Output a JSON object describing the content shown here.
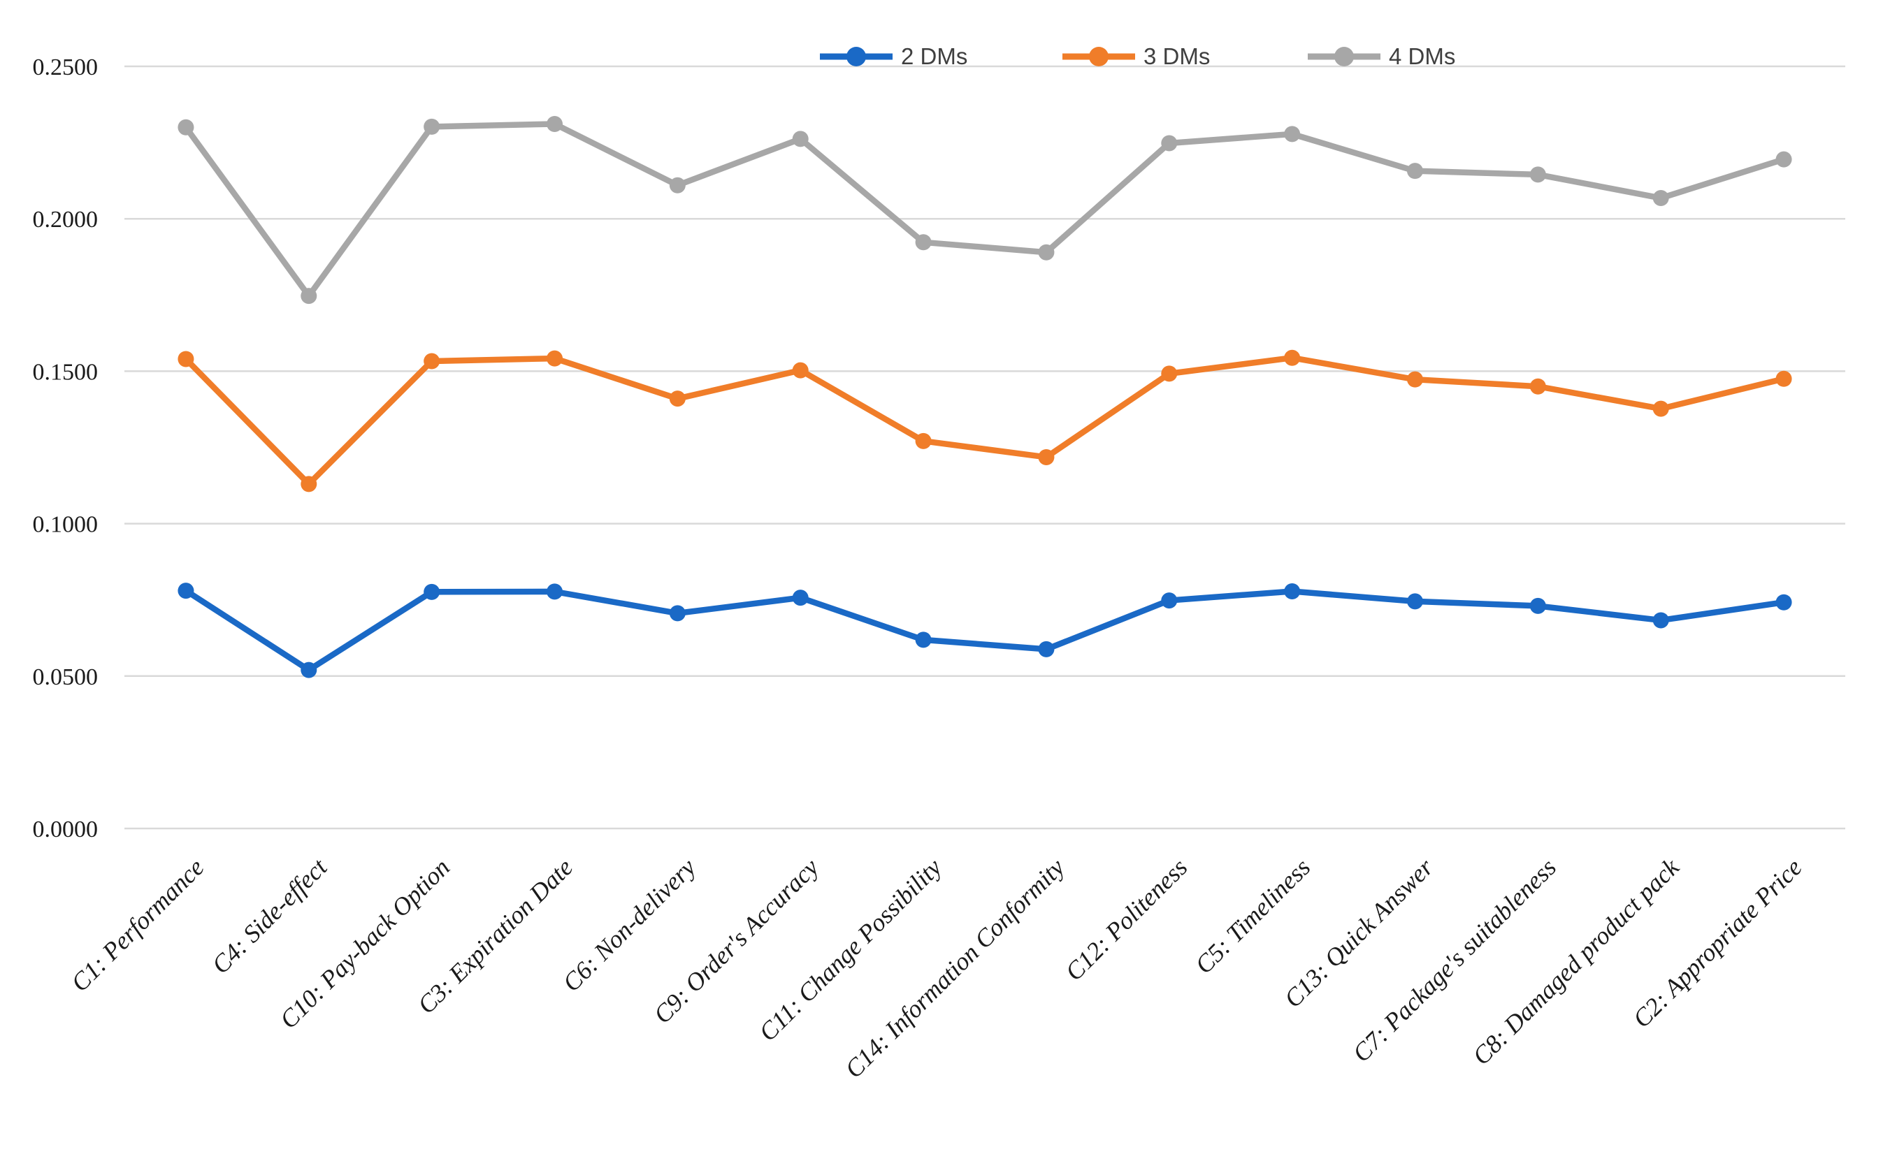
{
  "figure": {
    "background_color": "#ffffff",
    "gridline_color": "#d9d9d9",
    "axis_text_color": "#1a1a1a",
    "legend_text_color": "#3f3f3f"
  },
  "legend": {
    "items": [
      {
        "label": "2 DMs",
        "color": "#1a69c6"
      },
      {
        "label": "3 DMs",
        "color": "#f07d29"
      },
      {
        "label": "4 DMs",
        "color": "#a7a7a7"
      }
    ]
  },
  "chart_data": {
    "type": "line",
    "title": "",
    "xlabel": "",
    "ylabel": "",
    "categories": [
      "C1: Performance",
      "C4: Side-effect",
      "C10: Pay-back Option",
      "C3: Expiration Date",
      "C6: Non-delivery",
      "C9: Order's Accuracy",
      "C11: Change Possibility",
      "C14: Information Conformity",
      "C12: Politeness",
      "C5: Timeliness",
      "C13: Quick Answer",
      "C7: Package's suitableness",
      "C8: Damaged product pack",
      "C2: Appropriate Price"
    ],
    "series": [
      {
        "name": "2 DMs",
        "color": "#1a69c6",
        "values": [
          0.078,
          0.052,
          0.0776,
          0.0777,
          0.0706,
          0.0757,
          0.0619,
          0.0588,
          0.0748,
          0.0778,
          0.0745,
          0.073,
          0.0683,
          0.0742
        ]
      },
      {
        "name": "3 DMs",
        "color": "#f07d29",
        "values": [
          0.154,
          0.113,
          0.1533,
          0.1542,
          0.141,
          0.1503,
          0.1271,
          0.1218,
          0.1492,
          0.1544,
          0.1473,
          0.145,
          0.1377,
          0.1475
        ]
      },
      {
        "name": "4 DMs",
        "color": "#a7a7a7",
        "values": [
          0.23,
          0.1747,
          0.2302,
          0.2311,
          0.211,
          0.2262,
          0.1923,
          0.189,
          0.2248,
          0.2278,
          0.2157,
          0.2145,
          0.2068,
          0.2195
        ]
      }
    ],
    "y_ticks": [
      "0.0000",
      "0.0500",
      "0.1000",
      "0.1500",
      "0.2000",
      "0.2500"
    ],
    "ylim": [
      0.0,
      0.25
    ],
    "grid": "horizontal",
    "legend_position": "top",
    "x_tick_rotation_deg": 45
  }
}
